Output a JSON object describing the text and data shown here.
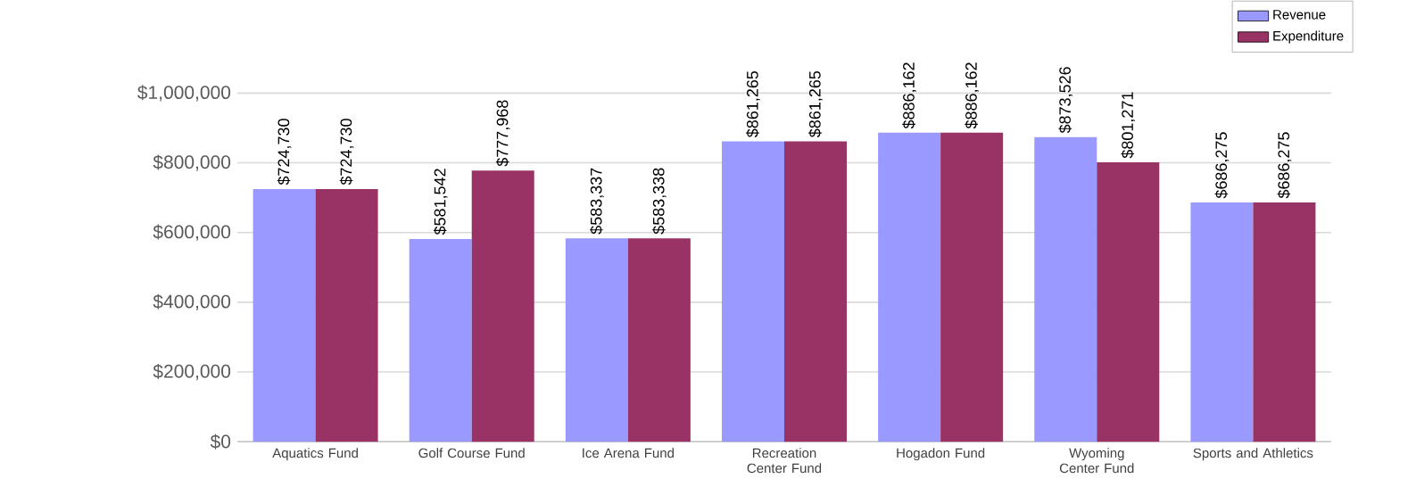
{
  "chart_data": {
    "type": "bar",
    "categories": [
      "Aquatics Fund",
      "Golf Course Fund",
      "Ice Arena Fund",
      "Recreation Center Fund",
      "Hogadon Fund",
      "Wyoming Center Fund",
      "Sports and Athletics"
    ],
    "series": [
      {
        "name": "Revenue",
        "color": "#9999ff",
        "values": [
          724730,
          581542,
          583337,
          861265,
          886162,
          873526,
          686275
        ],
        "value_labels": [
          "$724,730",
          "$581,542",
          "$583,337",
          "$861,265",
          "$886,162",
          "$873,526",
          "$686,275"
        ]
      },
      {
        "name": "Expenditure",
        "color": "#993366",
        "values": [
          724730,
          777968,
          583338,
          861265,
          886162,
          801271,
          686275
        ],
        "value_labels": [
          "$724,730",
          "$777,968",
          "$583,338",
          "$861,265",
          "$886,162",
          "$801,271",
          "$686,275"
        ]
      }
    ],
    "ylim": [
      0,
      1000000
    ],
    "yticks": [
      {
        "value": 0,
        "label": "$0"
      },
      {
        "value": 200000,
        "label": "$200,000"
      },
      {
        "value": 400000,
        "label": "$400,000"
      },
      {
        "value": 600000,
        "label": "$600,000"
      },
      {
        "value": 800000,
        "label": "$800,000"
      },
      {
        "value": 1000000,
        "label": "$1,000,000"
      }
    ],
    "grid": "y",
    "legend": "top right"
  }
}
